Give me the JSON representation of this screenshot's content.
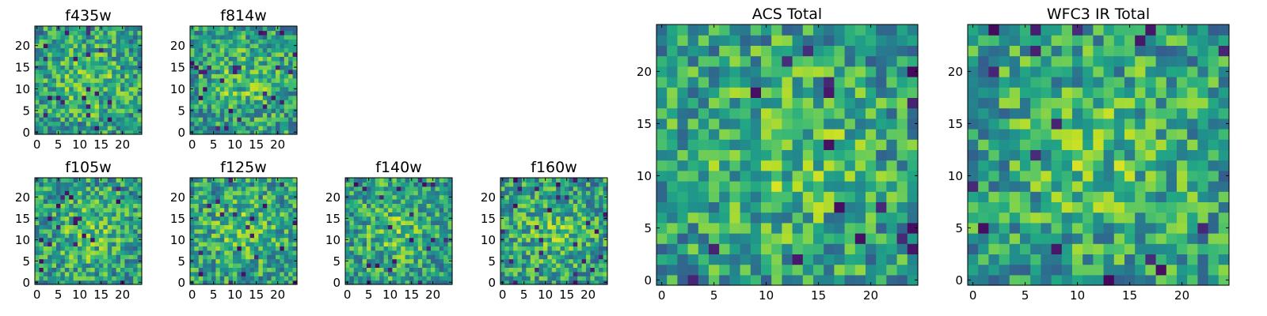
{
  "chart_data": [
    {
      "type": "heatmap",
      "title": "f435w",
      "xticks": [
        0,
        5,
        10,
        15,
        20
      ],
      "yticks": [
        0,
        5,
        10,
        15,
        20
      ],
      "xlim": [
        0,
        25
      ],
      "ylim": [
        0,
        25
      ],
      "grid": false,
      "colormap": "viridis",
      "seed": 11,
      "values": null
    },
    {
      "type": "heatmap",
      "title": "f814w",
      "xticks": [
        0,
        5,
        10,
        15,
        20
      ],
      "yticks": [
        0,
        5,
        10,
        15,
        20
      ],
      "xlim": [
        0,
        25
      ],
      "ylim": [
        0,
        25
      ],
      "grid": false,
      "colormap": "viridis",
      "seed": 23,
      "values": null
    },
    {
      "type": "heatmap",
      "title": "f105w",
      "xticks": [
        0,
        5,
        10,
        15,
        20
      ],
      "yticks": [
        0,
        5,
        10,
        15,
        20
      ],
      "xlim": [
        0,
        25
      ],
      "ylim": [
        0,
        25
      ],
      "grid": false,
      "colormap": "viridis",
      "seed": 37,
      "values": null
    },
    {
      "type": "heatmap",
      "title": "f125w",
      "xticks": [
        0,
        5,
        10,
        15,
        20
      ],
      "yticks": [
        0,
        5,
        10,
        15,
        20
      ],
      "xlim": [
        0,
        25
      ],
      "ylim": [
        0,
        25
      ],
      "grid": false,
      "colormap": "viridis",
      "seed": 41,
      "values": null
    },
    {
      "type": "heatmap",
      "title": "f140w",
      "xticks": [
        0,
        5,
        10,
        15,
        20
      ],
      "yticks": [
        0,
        5,
        10,
        15,
        20
      ],
      "xlim": [
        0,
        25
      ],
      "ylim": [
        0,
        25
      ],
      "grid": false,
      "colormap": "viridis",
      "seed": 53,
      "values": null
    },
    {
      "type": "heatmap",
      "title": "f160w",
      "xticks": [
        0,
        5,
        10,
        15,
        20
      ],
      "yticks": [
        0,
        5,
        10,
        15,
        20
      ],
      "xlim": [
        0,
        25
      ],
      "ylim": [
        0,
        25
      ],
      "grid": false,
      "colormap": "viridis",
      "seed": 67,
      "values": null
    },
    {
      "type": "heatmap",
      "title": "ACS Total",
      "xticks": [
        0,
        5,
        10,
        15,
        20
      ],
      "yticks": [
        0,
        5,
        10,
        15,
        20
      ],
      "xlim": [
        0,
        25
      ],
      "ylim": [
        0,
        25
      ],
      "grid": false,
      "colormap": "viridis",
      "seed": 79,
      "values": null
    },
    {
      "type": "heatmap",
      "title": "WFC3 IR Total",
      "xticks": [
        0,
        5,
        10,
        15,
        20
      ],
      "yticks": [
        0,
        5,
        10,
        15,
        20
      ],
      "xlim": [
        0,
        25
      ],
      "ylim": [
        0,
        25
      ],
      "grid": false,
      "colormap": "viridis",
      "seed": 97,
      "values": null
    }
  ]
}
